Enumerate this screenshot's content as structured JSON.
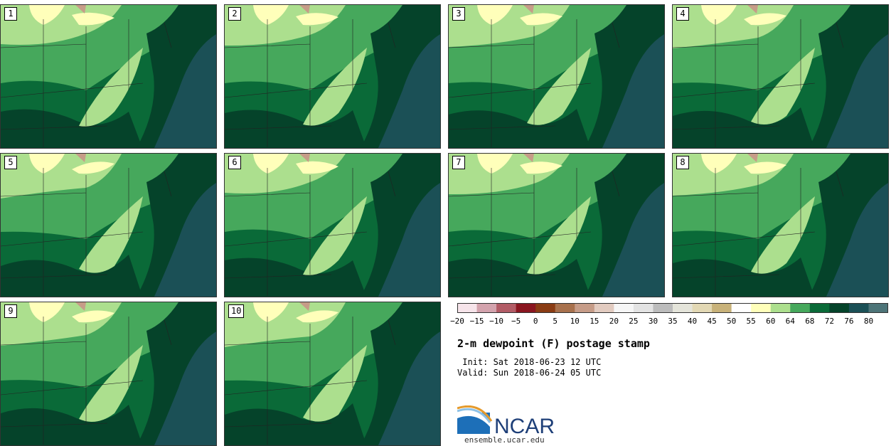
{
  "panels": [
    {
      "label": "1"
    },
    {
      "label": "2"
    },
    {
      "label": "3"
    },
    {
      "label": "4"
    },
    {
      "label": "5"
    },
    {
      "label": "6"
    },
    {
      "label": "7"
    },
    {
      "label": "8"
    },
    {
      "label": "9"
    },
    {
      "label": "10"
    }
  ],
  "colorbar": {
    "tick_labels": [
      "−20",
      "−15",
      "−10",
      "−5",
      "0",
      "5",
      "10",
      "15",
      "20",
      "25",
      "30",
      "35",
      "40",
      "45",
      "50",
      "55",
      "60",
      "64",
      "68",
      "72",
      "76",
      "80"
    ],
    "colors": [
      "#f6e4ea",
      "#d3a3ad",
      "#b25c66",
      "#8a1620",
      "#8a3c14",
      "#a8714d",
      "#c69c88",
      "#e2cbc0",
      "#f6f6f6",
      "#e3e3e3",
      "#bcbcbc",
      "#e4e4da",
      "#e2d8b4",
      "#c8b27a",
      "#ffffff",
      "#ffffba",
      "#acdf8e",
      "#46a85c",
      "#0a6a38",
      "#05432a",
      "#1b5056",
      "#4d7478"
    ]
  },
  "title": "2-m dewpoint (F) postage stamp",
  "init_line": " Init: Sat 2018-06-23 12 UTC",
  "valid_line": "Valid: Sun 2018-06-24 05 UTC",
  "logo": {
    "text": "NCAR",
    "url": "ensemble.ucar.edu"
  }
}
